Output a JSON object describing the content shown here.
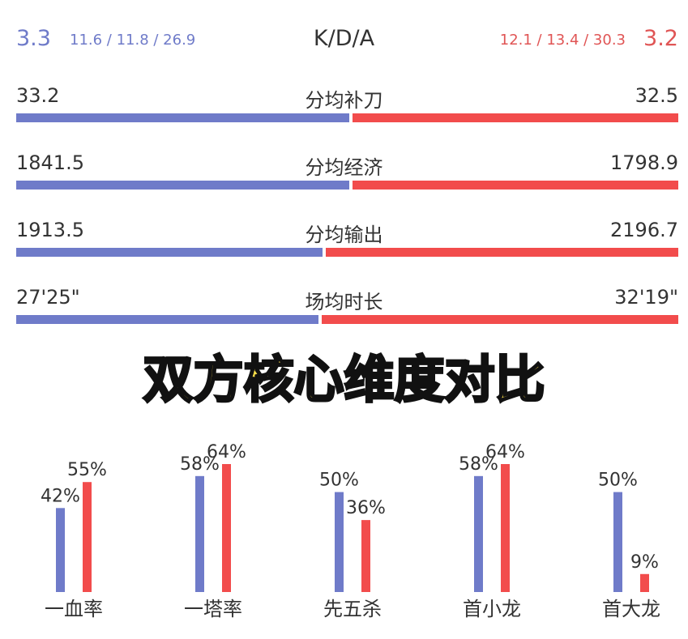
{
  "kda": {
    "title": "K/D/A",
    "left_value": "3.3",
    "left_detail": "11.6 / 11.8 / 26.9",
    "right_detail": "12.1 / 13.4 / 30.3",
    "right_value": "3.2"
  },
  "stats": [
    {
      "label": "分均补刀",
      "left": "33.2",
      "right": "32.5",
      "left_num": 33.2,
      "right_num": 32.5
    },
    {
      "label": "分均经济",
      "left": "1841.5",
      "right": "1798.9",
      "left_num": 1841.5,
      "right_num": 1798.9
    },
    {
      "label": "分均输出",
      "left": "1913.5",
      "right": "2196.7",
      "left_num": 1913.5,
      "right_num": 2196.7
    },
    {
      "label": "场均时长",
      "left": "27'25\"",
      "right": "32'19\"",
      "left_num": 1645,
      "right_num": 1939
    }
  ],
  "headline": "双方核心维度对比",
  "colors": {
    "blue": "#6f7bc9",
    "red": "#f24c4c",
    "text": "#333333",
    "headline": "#ffe14a"
  },
  "chart_data": {
    "type": "bar",
    "categories": [
      "一血率",
      "一塔率",
      "先五杀",
      "首小龙",
      "首大龙"
    ],
    "series": [
      {
        "values": [
          42,
          58,
          50,
          58,
          50
        ],
        "labels": [
          "42%",
          "58%",
          "50%",
          "58%",
          "50%"
        ],
        "color": "#6f7bc9"
      },
      {
        "values": [
          55,
          64,
          36,
          64,
          9
        ],
        "labels": [
          "55%",
          "64%",
          "36%",
          "64%",
          "9%"
        ],
        "color": "#f24c4c"
      }
    ],
    "ylim": [
      0,
      64
    ],
    "grid": false
  }
}
